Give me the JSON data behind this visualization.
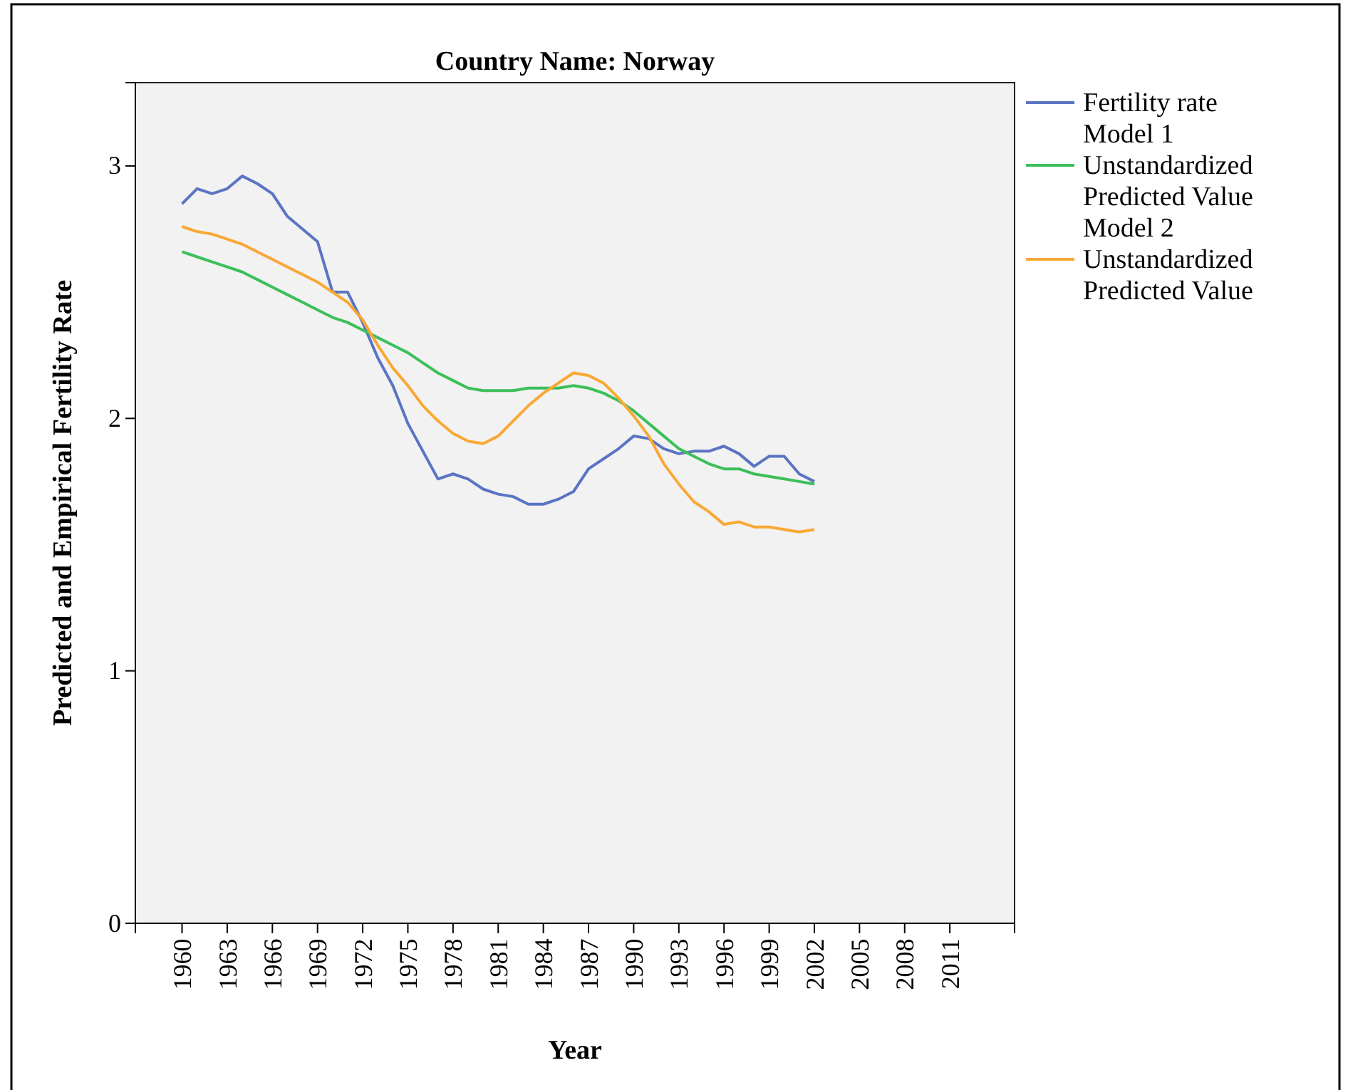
{
  "chart_data": {
    "type": "line",
    "title": "Country Name: Norway",
    "xlabel": "Year",
    "ylabel": "Predicted and Empirical Fertility Rate",
    "x": [
      1960,
      1961,
      1962,
      1963,
      1964,
      1965,
      1966,
      1967,
      1968,
      1969,
      1970,
      1971,
      1972,
      1973,
      1974,
      1975,
      1976,
      1977,
      1978,
      1979,
      1980,
      1981,
      1982,
      1983,
      1984,
      1985,
      1986,
      1987,
      1988,
      1989,
      1990,
      1991,
      1992,
      1993,
      1994,
      1995,
      1996,
      1997,
      1998,
      1999,
      2000,
      2001,
      2002
    ],
    "series": [
      {
        "name": "Fertility rate",
        "color": "#5b74c3",
        "values": [
          2.85,
          2.91,
          2.89,
          2.91,
          2.96,
          2.93,
          2.89,
          2.8,
          2.75,
          2.7,
          2.5,
          2.5,
          2.38,
          2.24,
          2.13,
          1.98,
          1.87,
          1.76,
          1.78,
          1.76,
          1.72,
          1.7,
          1.69,
          1.66,
          1.66,
          1.68,
          1.71,
          1.8,
          1.84,
          1.88,
          1.93,
          1.92,
          1.88,
          1.86,
          1.87,
          1.87,
          1.89,
          1.86,
          1.81,
          1.85,
          1.85,
          1.78,
          1.75
        ]
      },
      {
        "name": "Model 1 Unstandardized Predicted Value",
        "color": "#3cbf5a",
        "values": [
          2.66,
          2.64,
          2.62,
          2.6,
          2.58,
          2.55,
          2.52,
          2.49,
          2.46,
          2.43,
          2.4,
          2.38,
          2.35,
          2.32,
          2.29,
          2.26,
          2.22,
          2.18,
          2.15,
          2.12,
          2.11,
          2.11,
          2.11,
          2.12,
          2.12,
          2.12,
          2.13,
          2.12,
          2.1,
          2.07,
          2.03,
          1.98,
          1.93,
          1.88,
          1.85,
          1.82,
          1.8,
          1.8,
          1.78,
          1.77,
          1.76,
          1.75,
          1.74
        ]
      },
      {
        "name": "Model 2 Unstandardized Predicted Value",
        "color": "#f9a835",
        "values": [
          2.76,
          2.74,
          2.73,
          2.71,
          2.69,
          2.66,
          2.63,
          2.6,
          2.57,
          2.54,
          2.5,
          2.46,
          2.39,
          2.29,
          2.2,
          2.13,
          2.05,
          1.99,
          1.94,
          1.91,
          1.9,
          1.93,
          1.99,
          2.05,
          2.1,
          2.14,
          2.18,
          2.17,
          2.14,
          2.08,
          2.01,
          1.93,
          1.82,
          1.74,
          1.67,
          1.63,
          1.58,
          1.59,
          1.57,
          1.57,
          1.56,
          1.55,
          1.56
        ]
      }
    ],
    "xlim": [
      1956.9,
      2015.3
    ],
    "xticks": [
      1960,
      1963,
      1966,
      1969,
      1972,
      1975,
      1978,
      1981,
      1984,
      1987,
      1990,
      1993,
      1996,
      1999,
      2002,
      2005,
      2008,
      2011
    ],
    "ylim": [
      0,
      3.33
    ],
    "yticks": [
      0,
      1,
      2,
      3
    ],
    "grid": false,
    "legend": "top right",
    "marker": "none",
    "line_style": "solid"
  }
}
